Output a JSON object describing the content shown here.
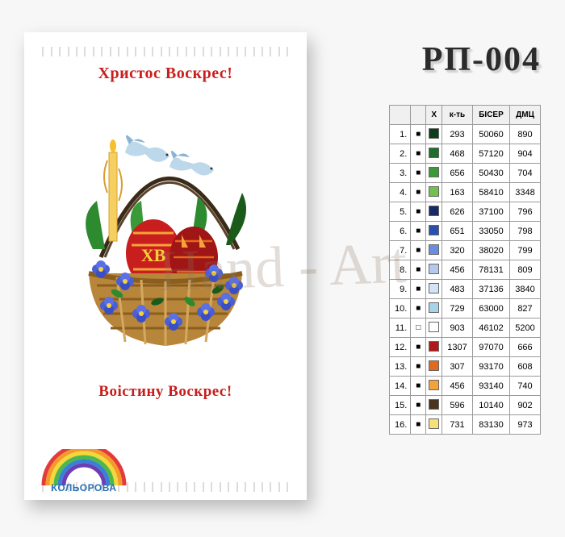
{
  "product_code": "РП-004",
  "embroidery": {
    "top_text": "Христос Воскрес!",
    "bottom_text": "Воістину Воскрес!",
    "egg_monogram": "ХВ"
  },
  "logo": {
    "text": "КОЛЬОРОВА",
    "rainbow_colors": [
      "#e23b3b",
      "#f59a2a",
      "#f2d83a",
      "#4fb64a",
      "#3980d6",
      "#6b3fb3"
    ]
  },
  "watermark": "Hand - Art",
  "table": {
    "headers": {
      "sym": "",
      "swatch": "X",
      "kt": "к-ть",
      "biser": "БІСЕР",
      "dmc": "ДМЦ"
    },
    "rows": [
      {
        "n": "1.",
        "sym": "■",
        "color": "#0e3d1a",
        "kt": "293",
        "biser": "50060",
        "dmc": "890"
      },
      {
        "n": "2.",
        "sym": "■",
        "color": "#1f6e2c",
        "kt": "468",
        "biser": "57120",
        "dmc": "904"
      },
      {
        "n": "3.",
        "sym": "■",
        "color": "#3a9a3a",
        "kt": "656",
        "biser": "50430",
        "dmc": "704"
      },
      {
        "n": "4.",
        "sym": "■",
        "color": "#6fc24d",
        "kt": "163",
        "biser": "58410",
        "dmc": "3348"
      },
      {
        "n": "5.",
        "sym": "■",
        "color": "#152a66",
        "kt": "626",
        "biser": "37100",
        "dmc": "796"
      },
      {
        "n": "6.",
        "sym": "■",
        "color": "#2a4fb0",
        "kt": "651",
        "biser": "33050",
        "dmc": "798"
      },
      {
        "n": "7.",
        "sym": "■",
        "color": "#6a8de0",
        "kt": "320",
        "biser": "38020",
        "dmc": "799"
      },
      {
        "n": "8.",
        "sym": "■",
        "color": "#b7c8f0",
        "kt": "456",
        "biser": "78131",
        "dmc": "809"
      },
      {
        "n": "9.",
        "sym": "■",
        "color": "#d6e2f5",
        "kt": "483",
        "biser": "37136",
        "dmc": "3840"
      },
      {
        "n": "10.",
        "sym": "■",
        "color": "#a8d4ea",
        "kt": "729",
        "biser": "63000",
        "dmc": "827"
      },
      {
        "n": "11.",
        "sym": "□",
        "color": "#ffffff",
        "kt": "903",
        "biser": "46102",
        "dmc": "5200"
      },
      {
        "n": "12.",
        "sym": "■",
        "color": "#b01818",
        "kt": "1307",
        "biser": "97070",
        "dmc": "666"
      },
      {
        "n": "13.",
        "sym": "■",
        "color": "#e26a1e",
        "kt": "307",
        "biser": "93170",
        "dmc": "608"
      },
      {
        "n": "14.",
        "sym": "■",
        "color": "#f2a33a",
        "kt": "456",
        "biser": "93140",
        "dmc": "740"
      },
      {
        "n": "15.",
        "sym": "■",
        "color": "#4a331f",
        "kt": "596",
        "biser": "10140",
        "dmc": "902"
      },
      {
        "n": "16.",
        "sym": "■",
        "color": "#f5e07a",
        "kt": "731",
        "biser": "83130",
        "dmc": "973"
      }
    ]
  },
  "artwork": {
    "basket_color": "#b8863a",
    "basket_dark": "#8a5e1e",
    "handle_color": "#3a2a18",
    "flower_color": "#4a5fd6",
    "flower_center": "#f5d23a",
    "leaf_color": "#2e8a2e",
    "leaf_dark": "#1a5a1a",
    "egg1_color": "#c81e1e",
    "egg1_pattern": "#f5a33a",
    "egg2_color": "#a01515",
    "dove_color": "#bcd8ea",
    "dove_shadow": "#8ab4d4",
    "candle_color": "#f5d060"
  }
}
